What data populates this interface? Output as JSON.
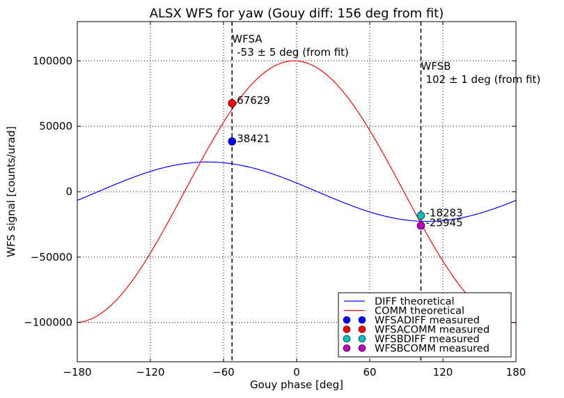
{
  "chart_data": {
    "type": "line",
    "title": "ALSX WFS for yaw (Gouy diff: 156 deg from fit)",
    "xlabel": "Gouy phase [deg]",
    "ylabel": "WFS signal [counts/urad]",
    "xlim": [
      -180,
      180
    ],
    "ylim": [
      -130000,
      130000
    ],
    "xticks": [
      -180,
      -120,
      -60,
      0,
      60,
      120,
      180
    ],
    "yticks": [
      -100000,
      -50000,
      0,
      50000,
      100000
    ],
    "xtick_labels": [
      "−180",
      "−120",
      "−60",
      "0",
      "60",
      "120",
      "180"
    ],
    "ytick_labels": [
      "−100000",
      "−50000",
      "0",
      "50000",
      "100000"
    ],
    "grid": true,
    "legend_position": "lower-right",
    "series": [
      {
        "name": "DIFF theoretical",
        "kind": "curve",
        "color": "#0000ff",
        "amplitude": 22700,
        "phase_deg": -73
      },
      {
        "name": "COMM theoretical",
        "kind": "curve",
        "color": "#ff0000",
        "amplitude": 100000,
        "phase_deg": -2
      }
    ],
    "points": [
      {
        "name": "WFSADIFF measured",
        "x": -53,
        "y": 38421,
        "label": "38421",
        "color": "#0000ff"
      },
      {
        "name": "WFSACOMM measured",
        "x": -53,
        "y": 67629,
        "label": "67629",
        "color": "#ff0000"
      },
      {
        "name": "WFSBDIFF measured",
        "x": 102,
        "y": -18283,
        "label": "-18283",
        "color": "#00bfbf"
      },
      {
        "name": "WFSBCOMM measured",
        "x": 102,
        "y": -25945,
        "label": "-25945",
        "color": "#bf00bf"
      }
    ],
    "vlines": [
      {
        "x": -53,
        "label": "WFSA",
        "sublabel": "-53 ± 5 deg (from fit)"
      },
      {
        "x": 102,
        "label": "WFSB",
        "sublabel": "102 ± 1 deg (from fit)"
      }
    ]
  }
}
